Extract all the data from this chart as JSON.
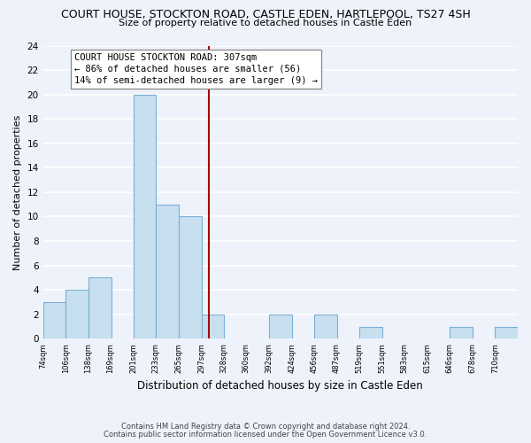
{
  "title": "COURT HOUSE, STOCKTON ROAD, CASTLE EDEN, HARTLEPOOL, TS27 4SH",
  "subtitle": "Size of property relative to detached houses in Castle Eden",
  "xlabel": "Distribution of detached houses by size in Castle Eden",
  "ylabel": "Number of detached properties",
  "bins": [
    74,
    106,
    138,
    169,
    201,
    233,
    265,
    297,
    328,
    360,
    392,
    424,
    456,
    487,
    519,
    551,
    583,
    615,
    646,
    678,
    710
  ],
  "counts": [
    3,
    4,
    5,
    0,
    20,
    11,
    10,
    2,
    0,
    0,
    2,
    0,
    2,
    0,
    1,
    0,
    0,
    0,
    1,
    0,
    1
  ],
  "bar_color": "#c8dff0",
  "bar_edge_color": "#7bafd4",
  "property_value": 307,
  "vline_color": "#aa0000",
  "annotation_line1": "COURT HOUSE STOCKTON ROAD: 307sqm",
  "annotation_line2": "← 86% of detached houses are smaller (56)",
  "annotation_line3": "14% of semi-detached houses are larger (9) →",
  "ylim": [
    0,
    24
  ],
  "yticks": [
    0,
    2,
    4,
    6,
    8,
    10,
    12,
    14,
    16,
    18,
    20,
    22,
    24
  ],
  "footer1": "Contains HM Land Registry data © Crown copyright and database right 2024.",
  "footer2": "Contains public sector information licensed under the Open Government Licence v3.0.",
  "background_color": "#eef2fb",
  "grid_color": "#ffffff",
  "tick_labels": [
    "74sqm",
    "106sqm",
    "138sqm",
    "169sqm",
    "201sqm",
    "233sqm",
    "265sqm",
    "297sqm",
    "328sqm",
    "360sqm",
    "392sqm",
    "424sqm",
    "456sqm",
    "487sqm",
    "519sqm",
    "551sqm",
    "583sqm",
    "615sqm",
    "646sqm",
    "678sqm",
    "710sqm"
  ]
}
